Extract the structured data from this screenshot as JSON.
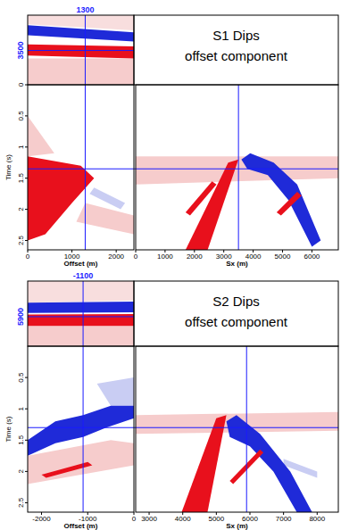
{
  "chart_data": [
    {
      "type": "heatmap",
      "title": "S1 Dips",
      "subtitle": "offset component",
      "x_label": "Offset (m)",
      "x2_label": "Sx (m)",
      "y_label": "Time (s)",
      "xlim": [
        0,
        2400
      ],
      "xticks": [
        0,
        1000,
        2000
      ],
      "x2lim": [
        0,
        6900
      ],
      "x2ticks": [
        0,
        1000,
        2000,
        3000,
        4000,
        5000,
        6000
      ],
      "ylim": [
        0,
        2.65
      ],
      "yticks": [
        0,
        0.5,
        1,
        1.5,
        2,
        2.5
      ],
      "slice_lim": [
        0,
        6900
      ],
      "crosshair": {
        "offset": 1300,
        "sx": 3500,
        "time": 1.35
      },
      "slice_events": [
        {
          "color": "#f6cccc",
          "points": [
            [
              0,
              4300
            ],
            [
              2400,
              4300
            ],
            [
              2400,
              6900
            ],
            [
              0,
              6900
            ]
          ]
        },
        {
          "color": "#f8dede",
          "points": [
            [
              0,
              0
            ],
            [
              2400,
              0
            ],
            [
              2400,
              1500
            ],
            [
              0,
              900
            ]
          ]
        },
        {
          "color": "#1f2ad8",
          "points": [
            [
              0,
              1000
            ],
            [
              2400,
              1700
            ],
            [
              2400,
              2600
            ],
            [
              0,
              2000
            ]
          ]
        },
        {
          "color": "#e8101c",
          "points": [
            [
              0,
              2900
            ],
            [
              2400,
              3100
            ],
            [
              2400,
              4300
            ],
            [
              0,
              4000
            ]
          ]
        }
      ],
      "offset_events": [
        {
          "color": "#f6cccc",
          "points": [
            [
              0,
              0.5
            ],
            [
              600,
              1.1
            ],
            [
              0,
              1.15
            ]
          ]
        },
        {
          "color": "#c9cdf3",
          "points": [
            [
              1500,
              1.65
            ],
            [
              2200,
              1.9
            ],
            [
              2100,
              2.0
            ],
            [
              1400,
              1.75
            ]
          ]
        },
        {
          "color": "#f6cccc",
          "points": [
            [
              1300,
              1.9
            ],
            [
              2400,
              2.1
            ],
            [
              2400,
              2.4
            ],
            [
              1100,
              2.2
            ]
          ]
        },
        {
          "color": "#e8101c",
          "points": [
            [
              0,
              1.15
            ],
            [
              1200,
              1.3
            ],
            [
              1500,
              1.5
            ],
            [
              1000,
              1.9
            ],
            [
              400,
              2.4
            ],
            [
              0,
              2.5
            ]
          ]
        }
      ],
      "sx_events": [
        {
          "color": "#f6cccc",
          "points": [
            [
              0,
              1.15
            ],
            [
              6900,
              1.15
            ],
            [
              6900,
              1.5
            ],
            [
              0,
              1.6
            ]
          ]
        },
        {
          "color": "#e8101c",
          "points": [
            [
              1700,
              2.65
            ],
            [
              3150,
              1.25
            ],
            [
              3500,
              1.2
            ],
            [
              2450,
              2.65
            ]
          ]
        },
        {
          "color": "#e8101c",
          "points": [
            [
              1700,
              2.05
            ],
            [
              2600,
              1.55
            ],
            [
              2750,
              1.6
            ],
            [
              1850,
              2.1
            ]
          ]
        },
        {
          "color": "#1f2ad8",
          "points": [
            [
              3600,
              1.2
            ],
            [
              3900,
              1.1
            ],
            [
              4700,
              1.25
            ],
            [
              5500,
              1.6
            ],
            [
              6300,
              2.5
            ],
            [
              6000,
              2.6
            ],
            [
              5200,
              1.85
            ],
            [
              4500,
              1.45
            ],
            [
              3800,
              1.35
            ]
          ]
        },
        {
          "color": "#e8101c",
          "points": [
            [
              4800,
              2.05
            ],
            [
              5500,
              1.72
            ],
            [
              5650,
              1.78
            ],
            [
              4950,
              2.1
            ]
          ]
        }
      ]
    },
    {
      "type": "heatmap",
      "title": "S2 Dips",
      "subtitle": "offset component",
      "x_label": "Offset (m)",
      "x2_label": "Sx (m)",
      "y_label": "Time (s)",
      "xlim": [
        -2300,
        0
      ],
      "xticks": [
        -2000,
        -1000,
        0
      ],
      "x2lim": [
        2600,
        8630
      ],
      "x2ticks": [
        3000,
        4000,
        5000,
        6000,
        7000,
        8000
      ],
      "ylim": [
        0,
        2.65
      ],
      "yticks": [
        0.5,
        1,
        1.5,
        2,
        2.5
      ],
      "slice_lim": [
        2600,
        8630
      ],
      "crosshair": {
        "offset": -1100,
        "sx": 5900,
        "time": 1.3
      },
      "slice_events": [
        {
          "color": "#f6cccc",
          "points": [
            [
              -2300,
              6750
            ],
            [
              0,
              6750
            ],
            [
              0,
              8630
            ],
            [
              -2300,
              8630
            ]
          ]
        },
        {
          "color": "#f8dede",
          "points": [
            [
              -2300,
              2600
            ],
            [
              0,
              2600
            ],
            [
              0,
              4400
            ],
            [
              -2300,
              4600
            ]
          ]
        },
        {
          "color": "#1f2ad8",
          "points": [
            [
              -2300,
              4600
            ],
            [
              0,
              4500
            ],
            [
              0,
              5500
            ],
            [
              -2300,
              5550
            ]
          ]
        },
        {
          "color": "#e8101c",
          "points": [
            [
              -2300,
              5700
            ],
            [
              0,
              5650
            ],
            [
              0,
              6750
            ],
            [
              -2300,
              6750
            ]
          ]
        }
      ],
      "offset_events": [
        {
          "color": "#c9cdf3",
          "points": [
            [
              -800,
              0.6
            ],
            [
              0,
              0.5
            ],
            [
              0,
              0.95
            ],
            [
              -500,
              0.95
            ]
          ]
        },
        {
          "color": "#f6cccc",
          "points": [
            [
              -2300,
              1.75
            ],
            [
              -500,
              1.5
            ],
            [
              0,
              1.55
            ],
            [
              0,
              1.9
            ],
            [
              -2300,
              2.2
            ]
          ]
        },
        {
          "color": "#1f2ad8",
          "points": [
            [
              -2300,
              1.5
            ],
            [
              -1700,
              1.2
            ],
            [
              -1100,
              1.1
            ],
            [
              -500,
              0.95
            ],
            [
              0,
              0.95
            ],
            [
              0,
              1.15
            ],
            [
              -600,
              1.3
            ],
            [
              -1100,
              1.45
            ],
            [
              -1700,
              1.55
            ],
            [
              -2300,
              1.75
            ]
          ]
        },
        {
          "color": "#e8101c",
          "points": [
            [
              -2000,
              2.05
            ],
            [
              -1000,
              1.85
            ],
            [
              -900,
              1.9
            ],
            [
              -1900,
              2.1
            ]
          ]
        }
      ],
      "sx_events": [
        {
          "color": "#f6cccc",
          "points": [
            [
              2600,
              1.1
            ],
            [
              8630,
              1.05
            ],
            [
              8630,
              1.35
            ],
            [
              2600,
              1.4
            ]
          ]
        },
        {
          "color": "#c9cdf3",
          "points": [
            [
              7000,
              1.8
            ],
            [
              8000,
              2.0
            ],
            [
              8000,
              2.1
            ],
            [
              7000,
              1.9
            ]
          ]
        },
        {
          "color": "#e8101c",
          "points": [
            [
              3900,
              2.75
            ],
            [
              5000,
              1.15
            ],
            [
              5300,
              1.1
            ],
            [
              4700,
              2.75
            ]
          ]
        },
        {
          "color": "#1f2ad8",
          "points": [
            [
              5300,
              1.2
            ],
            [
              5600,
              1.1
            ],
            [
              6300,
              1.4
            ],
            [
              7200,
              2.0
            ],
            [
              7900,
              2.7
            ],
            [
              7500,
              2.75
            ],
            [
              6700,
              2.0
            ],
            [
              6000,
              1.6
            ],
            [
              5400,
              1.45
            ]
          ]
        },
        {
          "color": "#e8101c",
          "points": [
            [
              5400,
              2.15
            ],
            [
              6300,
              1.65
            ],
            [
              6400,
              1.7
            ],
            [
              5500,
              2.2
            ]
          ]
        }
      ]
    }
  ]
}
